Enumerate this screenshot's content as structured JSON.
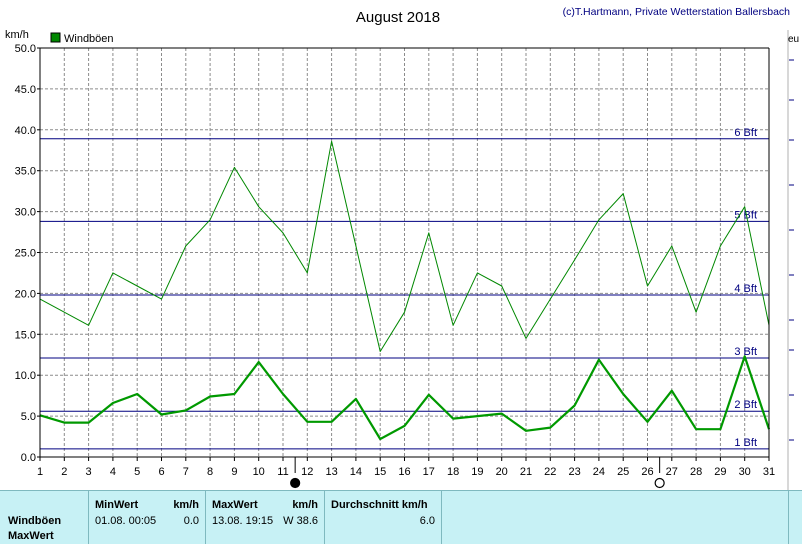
{
  "header": {
    "title": "August 2018",
    "credit": "(c)T.Hartmann, Private Wetterstation Ballersbach",
    "unit_label": "km/h",
    "edge_label": "eu"
  },
  "colors": {
    "gust_max": "#008800",
    "gust_avg": "#009900",
    "beaufort_line": "#000080",
    "grid": "#8c8c8c",
    "footer_bg": "#c7f1f5"
  },
  "chart_data": {
    "type": "line",
    "title": "August 2018",
    "ylabel": "km/h",
    "xlabel": "",
    "legend": {
      "label": "Windböen",
      "placement": "top-left"
    },
    "x": [
      1,
      2,
      3,
      4,
      5,
      6,
      7,
      8,
      9,
      10,
      11,
      12,
      13,
      14,
      15,
      16,
      17,
      18,
      19,
      20,
      21,
      22,
      23,
      24,
      25,
      26,
      27,
      28,
      29,
      30,
      31
    ],
    "xlim": [
      1,
      31
    ],
    "ylim": [
      0,
      50
    ],
    "yticks": [
      "0.0",
      "5.0",
      "10.0",
      "15.0",
      "20.0",
      "25.0",
      "30.0",
      "35.0",
      "40.0",
      "45.0",
      "50.0"
    ],
    "grid": true,
    "series": [
      {
        "name": "Windböen",
        "role": "daily-max",
        "values": [
          19.3,
          17.7,
          16.1,
          22.5,
          20.9,
          19.3,
          25.8,
          29.0,
          35.4,
          30.6,
          27.4,
          22.5,
          38.6,
          25.8,
          12.9,
          17.7,
          27.4,
          16.1,
          22.5,
          20.9,
          14.5,
          19.3,
          24.1,
          29.0,
          32.2,
          20.9,
          25.8,
          17.7,
          25.8,
          30.6,
          16.1
        ]
      },
      {
        "role": "daily-average",
        "values": [
          5.1,
          4.2,
          4.2,
          6.6,
          7.7,
          5.2,
          5.7,
          7.4,
          7.7,
          11.6,
          7.7,
          4.3,
          4.3,
          7.1,
          2.2,
          3.8,
          7.6,
          4.7,
          5.0,
          5.3,
          3.2,
          3.6,
          6.3,
          11.9,
          7.7,
          4.3,
          8.1,
          3.4,
          3.4,
          12.3,
          3.4
        ]
      }
    ],
    "beaufort_lines": [
      {
        "label": "1 Bft",
        "value": 1.0
      },
      {
        "label": "2 Bft",
        "value": 5.6
      },
      {
        "label": "3 Bft",
        "value": 12.1
      },
      {
        "label": "4 Bft",
        "value": 19.8
      },
      {
        "label": "5 Bft",
        "value": 28.8
      },
      {
        "label": "6 Bft",
        "value": 38.9
      }
    ],
    "moon_phases": [
      {
        "day": 11.5,
        "phase": "new"
      },
      {
        "day": 26.5,
        "phase": "full"
      }
    ]
  },
  "summary": {
    "row_labels": [
      "Windböen",
      "MaxWert"
    ],
    "min": {
      "header": "MinWert",
      "unit": "km/h",
      "datetime": "01.08.  00:05",
      "value": "0.0"
    },
    "max": {
      "header": "MaxWert",
      "unit": "km/h",
      "datetime": "13.08.  19:15",
      "value": "W 38.6"
    },
    "avg": {
      "header": "Durchschnitt km/h",
      "value": "6.0"
    }
  }
}
